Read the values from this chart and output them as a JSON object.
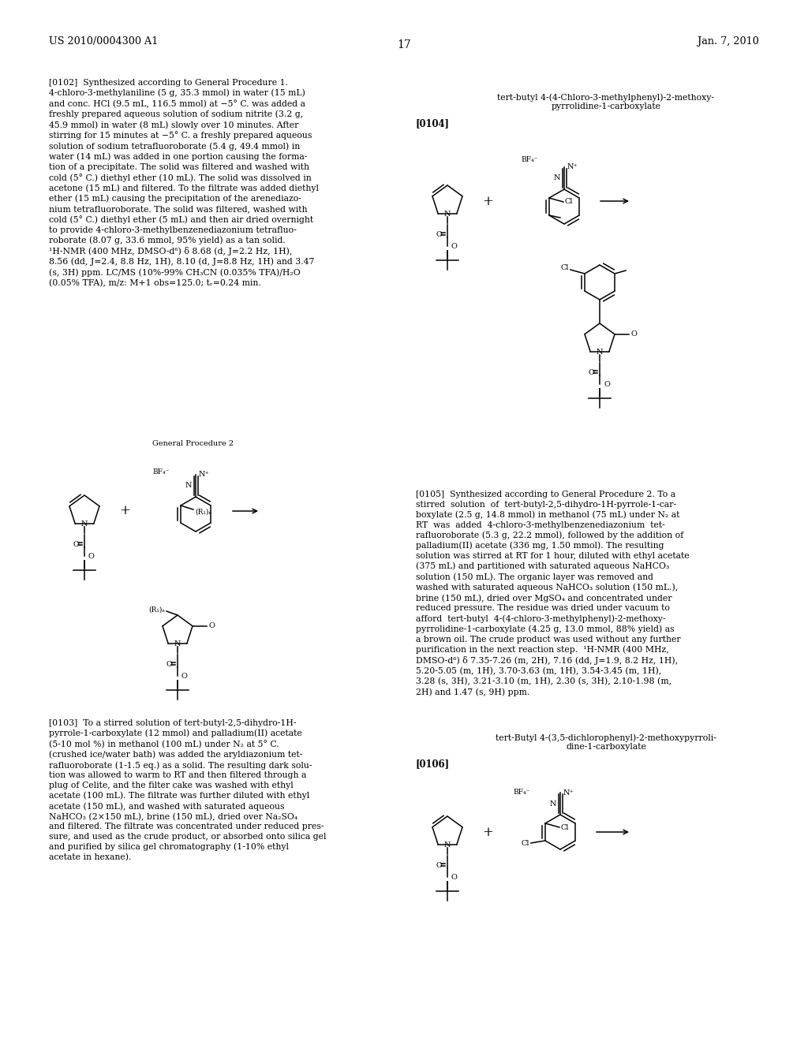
{
  "bg": "#ffffff",
  "header_left": "US 2010/0004300 A1",
  "header_right": "Jan. 7, 2010",
  "page_num": "17",
  "p0102": "[0102]  Synthesized according to General Procedure 1.\n4-chloro-3-methylaniline (5 g, 35.3 mmol) in water (15 mL)\nand conc. HCl (9.5 mL, 116.5 mmol) at −5° C. was added a\nfreshly prepared aqueous solution of sodium nitrite (3.2 g,\n45.9 mmol) in water (8 mL) slowly over 10 minutes. After\nstirring for 15 minutes at −5° C. a freshly prepared aqueous\nsolution of sodium tetrafluoroborate (5.4 g, 49.4 mmol) in\nwater (14 mL) was added in one portion causing the forma-\ntion of a precipitate. The solid was filtered and washed with\ncold (5° C.) diethyl ether (10 mL). The solid was dissolved in\nacetone (15 mL) and filtered. To the filtrate was added diethyl\nether (15 mL) causing the precipitation of the arenediazo-\nnium tetrafluoroborate. The solid was filtered, washed with\ncold (5° C.) diethyl ether (5 mL) and then air dried overnight\nto provide 4-chloro-3-methylbenzenediazonium tetrafluo-\nroborate (8.07 g, 33.6 mmol, 95% yield) as a tan solid.\n¹H-NMR (400 MHz, DMSO-d⁶) δ 8.68 (d, J=2.2 Hz, 1H),\n8.56 (dd, J=2.4, 8.8 Hz, 1H), 8.10 (d, J=8.8 Hz, 1H) and 3.47\n(s, 3H) ppm. LC/MS (10%-99% CH₃CN (0.035% TFA)/H₂O\n(0.05% TFA), m/z: M+1 obs=125.0; tᵣ=0.24 min.",
  "gp2_label": "General Procedure 2",
  "p0103": "[0103]  To a stirred solution of tert-butyl-2,5-dihydro-1H-\npyrrole-1-carboxylate (12 mmol) and palladium(II) acetate\n(5-10 mol %) in methanol (100 mL) under N₂ at 5° C.\n(crushed ice/water bath) was added the aryldiazonium tet-\nrafluoroborate (1-1.5 eq.) as a solid. The resulting dark solu-\ntion was allowed to warm to RT and then filtered through a\nplug of Celite, and the filter cake was washed with ethyl\nacetate (100 mL). The filtrate was further diluted with ethyl\nacetate (150 mL), and washed with saturated aqueous\nNaHCO₃ (2×150 mL), brine (150 mL), dried over Na₂SO₄\nand filtered. The filtrate was concentrated under reduced pres-\nsure, and used as the crude product, or absorbed onto silica gel\nand purified by silica gel chromatography (1-10% ethyl\nacetate in hexane).",
  "title0104a": "tert-butyl 4-(4-Chloro-3-methylphenyl)-2-methoxy-",
  "title0104b": "pyrrolidine-1-carboxylate",
  "label0104": "[0104]",
  "p0105": "[0105]  Synthesized according to General Procedure 2. To a\nstirred  solution  of  tert-butyl-2,5-dihydro-1H-pyrrole-1-car-\nboxylate (2.5 g, 14.8 mmol) in methanol (75 mL) under N₂ at\nRT  was  added  4-chloro-3-methylbenzenediazonium  tet-\nrafluoroborate (5.3 g, 22.2 mmol), followed by the addition of\npalladium(II) acetate (336 mg, 1.50 mmol). The resulting\nsolution was stirred at RT for 1 hour, diluted with ethyl acetate\n(375 mL) and partitioned with saturated aqueous NaHCO₃\nsolution (150 mL). The organic layer was removed and\nwashed with saturated aqueous NaHCO₃ solution (150 mL.),\nbrine (150 mL), dried over MgSO₄ and concentrated under\nreduced pressure. The residue was dried under vacuum to\nafford  tert-butyl  4-(4-chloro-3-methylphenyl)-2-methoxy-\npyrrolidine-1-carboxylate (4.25 g, 13.0 mmol, 88% yield) as\na brown oil. The crude product was used without any further\npurification in the next reaction step.  ¹H-NMR (400 MHz,\nDMSO-d⁶) δ 7.35-7.26 (m, 2H), 7.16 (dd, J=1.9, 8.2 Hz, 1H),\n5.20-5.05 (m, 1H), 3.70-3.63 (m, 1H), 3.54-3.45 (m, 1H),\n3.28 (s, 3H), 3.21-3.10 (m, 1H), 2.30 (s, 3H), 2.10-1.98 (m,\n2H) and 1.47 (s, 9H) ppm.",
  "title0106a": "tert-Butyl 4-(3,5-dichlorophenyl)-2-methoxypyrroli-",
  "title0106b": "dine-1-carboxylate",
  "label0106": "[0106]"
}
